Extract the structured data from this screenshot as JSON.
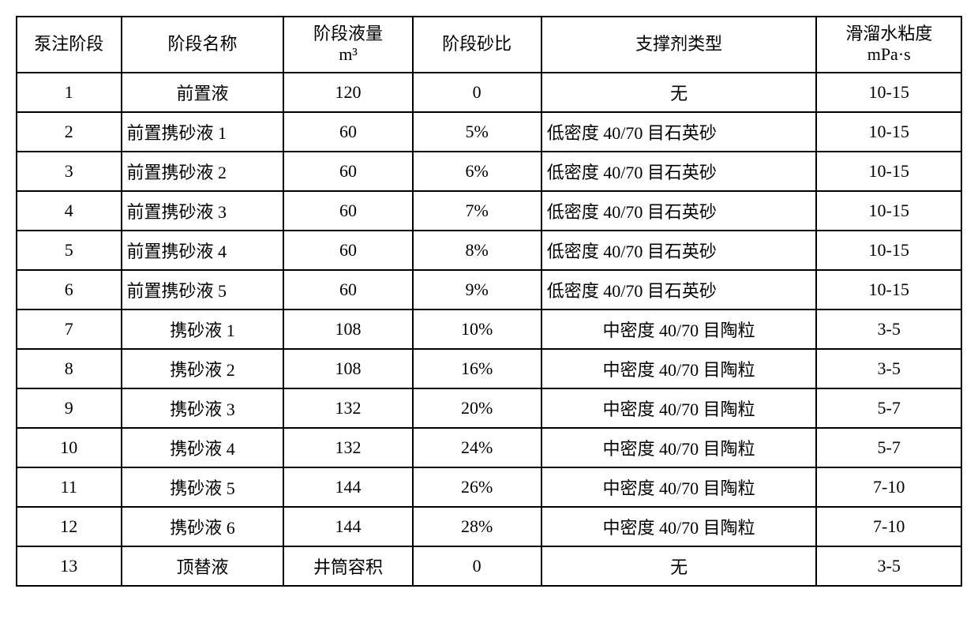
{
  "table": {
    "columns": [
      {
        "key": "c1",
        "label": "泵注阶段"
      },
      {
        "key": "c2",
        "label_line1": "阶段名称"
      },
      {
        "key": "c3",
        "label_line1": "阶段液量",
        "label_line2": "m³"
      },
      {
        "key": "c4",
        "label": "阶段砂比"
      },
      {
        "key": "c5",
        "label": "支撑剂类型"
      },
      {
        "key": "c6",
        "label_line1": "滑溜水粘度",
        "label_line2": "mPa·s"
      }
    ],
    "rows": [
      {
        "c1": "1",
        "c2": "前置液",
        "c2_align": "center",
        "c3": "120",
        "c4": "0",
        "c5": "无",
        "c5_align": "center",
        "c6": "10-15"
      },
      {
        "c1": "2",
        "c2": "前置携砂液 1",
        "c2_align": "left",
        "c3": "60",
        "c4": "5%",
        "c5": "低密度 40/70 目石英砂",
        "c5_align": "left",
        "c6": "10-15"
      },
      {
        "c1": "3",
        "c2": "前置携砂液 2",
        "c2_align": "left",
        "c3": "60",
        "c4": "6%",
        "c5": "低密度 40/70 目石英砂",
        "c5_align": "left",
        "c6": "10-15"
      },
      {
        "c1": "4",
        "c2": "前置携砂液 3",
        "c2_align": "left",
        "c3": "60",
        "c4": "7%",
        "c5": "低密度 40/70 目石英砂",
        "c5_align": "left",
        "c6": "10-15"
      },
      {
        "c1": "5",
        "c2": "前置携砂液 4",
        "c2_align": "left",
        "c3": "60",
        "c4": "8%",
        "c5": "低密度 40/70 目石英砂",
        "c5_align": "left",
        "c6": "10-15"
      },
      {
        "c1": "6",
        "c2": "前置携砂液 5",
        "c2_align": "left",
        "c3": "60",
        "c4": "9%",
        "c5": "低密度 40/70 目石英砂",
        "c5_align": "left",
        "c6": "10-15"
      },
      {
        "c1": "7",
        "c2": "携砂液 1",
        "c2_align": "center",
        "c3": "108",
        "c4": "10%",
        "c5": "中密度 40/70 目陶粒",
        "c5_align": "center",
        "c6": "3-5"
      },
      {
        "c1": "8",
        "c2": "携砂液 2",
        "c2_align": "center",
        "c3": "108",
        "c4": "16%",
        "c5": "中密度 40/70 目陶粒",
        "c5_align": "center",
        "c6": "3-5"
      },
      {
        "c1": "9",
        "c2": "携砂液 3",
        "c2_align": "center",
        "c3": "132",
        "c4": "20%",
        "c5": "中密度 40/70 目陶粒",
        "c5_align": "center",
        "c6": "5-7"
      },
      {
        "c1": "10",
        "c2": "携砂液 4",
        "c2_align": "center",
        "c3": "132",
        "c4": "24%",
        "c5": "中密度 40/70 目陶粒",
        "c5_align": "center",
        "c6": "5-7"
      },
      {
        "c1": "11",
        "c2": "携砂液 5",
        "c2_align": "center",
        "c3": "144",
        "c4": "26%",
        "c5": "中密度 40/70 目陶粒",
        "c5_align": "center",
        "c6": "7-10"
      },
      {
        "c1": "12",
        "c2": "携砂液 6",
        "c2_align": "center",
        "c3": "144",
        "c4": "28%",
        "c5": "中密度 40/70 目陶粒",
        "c5_align": "center",
        "c6": "7-10"
      },
      {
        "c1": "13",
        "c2": "顶替液",
        "c2_align": "center",
        "c3": "井筒容积",
        "c4": "0",
        "c5": "无",
        "c5_align": "center",
        "c6": "3-5"
      }
    ]
  }
}
